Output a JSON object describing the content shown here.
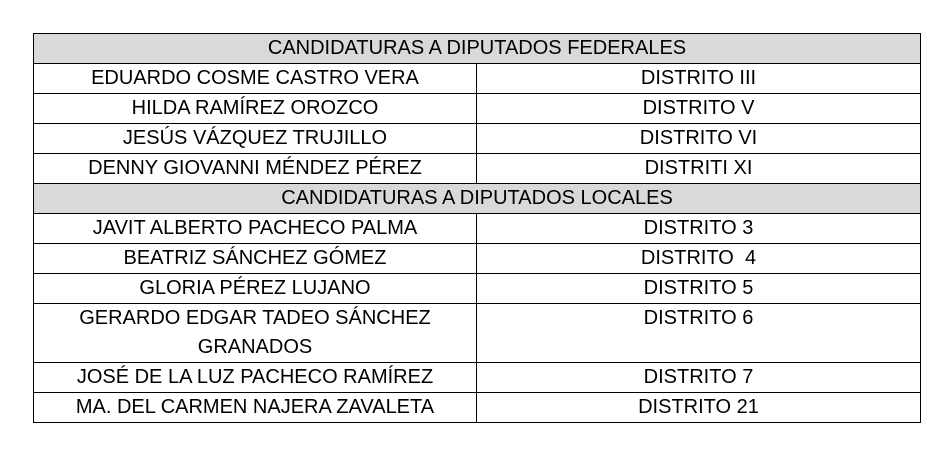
{
  "table": {
    "header_bg": "#d9d9d9",
    "border_color": "#000000",
    "text_color": "#000000",
    "page_bg": "#ffffff",
    "sections": [
      {
        "header": "CANDIDATURAS A DIPUTADOS FEDERALES",
        "rows": [
          {
            "name": "EDUARDO COSME CASTRO VERA",
            "district": "DISTRITO III"
          },
          {
            "name": "HILDA RAMÍREZ OROZCO",
            "district": "DISTRITO V"
          },
          {
            "name": "JESÚS VÁZQUEZ TRUJILLO",
            "district": "DISTRITO VI"
          },
          {
            "name": "DENNY GIOVANNI MÉNDEZ PÉREZ",
            "district": "DISTRITI XI"
          }
        ]
      },
      {
        "header": "CANDIDATURAS A DIPUTADOS LOCALES",
        "rows": [
          {
            "name": "JAVIT ALBERTO PACHECO PALMA",
            "district": "DISTRITO 3"
          },
          {
            "name": "BEATRIZ SÁNCHEZ GÓMEZ",
            "district": "DISTRITO  4"
          },
          {
            "name": "GLORIA PÉREZ LUJANO",
            "district": "DISTRITO 5"
          },
          {
            "name": "GERARDO EDGAR TADEO SÁNCHEZ GRANADOS",
            "district": "DISTRITO 6"
          },
          {
            "name": "JOSÉ DE LA LUZ PACHECO RAMÍREZ",
            "district": "DISTRITO 7"
          },
          {
            "name": "MA. DEL CARMEN NAJERA ZAVALETA",
            "district": "DISTRITO 21"
          }
        ]
      }
    ]
  }
}
